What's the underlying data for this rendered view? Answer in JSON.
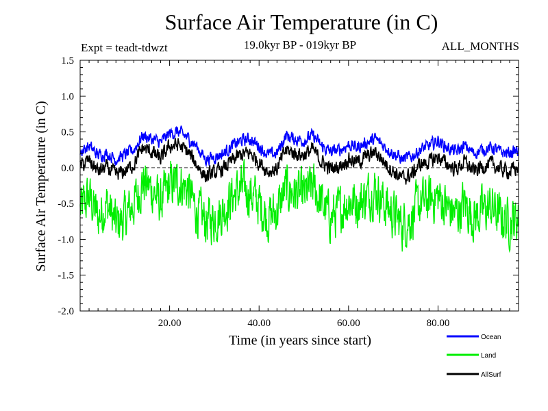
{
  "header": {
    "title": "Surface Air Temperature (in C)",
    "experiment": "Expt = teadt-tdwzt",
    "period": "19.0kyr BP - 019kyr BP",
    "months": "ALL_MONTHS"
  },
  "chart_data": {
    "type": "line",
    "title": "Surface Air Temperature (in C)",
    "xlabel": "Time (in years since start)",
    "ylabel": "Surface Air Temperature (in C)",
    "xlim": [
      0,
      98
    ],
    "ylim": [
      -2.0,
      1.5
    ],
    "x_ticks": [
      20,
      40,
      60,
      80
    ],
    "x_tick_labels": [
      "20.00",
      "40.00",
      "60.00",
      "80.00"
    ],
    "y_ticks": [
      -2.0,
      -1.5,
      -1.0,
      -0.5,
      0.0,
      0.5,
      1.0,
      1.5
    ],
    "y_tick_labels": [
      "-2.0",
      "-1.5",
      "-1.0",
      "-0.5",
      "0.0",
      "0.5",
      "1.0",
      "1.5"
    ],
    "reference_line": 0.0,
    "legend_position": "bottom-right",
    "series": [
      {
        "name": "Ocean",
        "color": "#0000ff",
        "x": [
          0,
          2,
          4,
          6,
          8,
          10,
          12,
          14,
          16,
          18,
          20,
          22,
          24,
          26,
          28,
          30,
          32,
          34,
          36,
          38,
          40,
          42,
          44,
          46,
          48,
          50,
          52,
          54,
          56,
          58,
          60,
          62,
          64,
          66,
          68,
          70,
          72,
          74,
          76,
          78,
          80,
          82,
          84,
          86,
          88,
          90,
          92,
          94,
          96,
          98
        ],
        "values": [
          0.22,
          0.3,
          0.18,
          0.2,
          0.12,
          0.18,
          0.25,
          0.45,
          0.4,
          0.35,
          0.48,
          0.5,
          0.42,
          0.3,
          0.12,
          0.15,
          0.2,
          0.3,
          0.38,
          0.4,
          0.3,
          0.18,
          0.2,
          0.45,
          0.4,
          0.38,
          0.45,
          0.3,
          0.22,
          0.25,
          0.32,
          0.28,
          0.35,
          0.4,
          0.3,
          0.2,
          0.12,
          0.15,
          0.25,
          0.3,
          0.38,
          0.28,
          0.22,
          0.3,
          0.2,
          0.25,
          0.28,
          0.22,
          0.2,
          0.25
        ]
      },
      {
        "name": "Land",
        "color": "#00ee00",
        "x": [
          0,
          2,
          4,
          6,
          8,
          10,
          12,
          14,
          16,
          18,
          20,
          22,
          24,
          26,
          28,
          30,
          32,
          34,
          36,
          38,
          40,
          42,
          44,
          46,
          48,
          50,
          52,
          54,
          56,
          58,
          60,
          62,
          64,
          66,
          68,
          70,
          72,
          74,
          76,
          78,
          80,
          82,
          84,
          86,
          88,
          90,
          92,
          94,
          96,
          98
        ],
        "values": [
          -0.6,
          -0.4,
          -0.7,
          -0.5,
          -0.8,
          -0.7,
          -0.5,
          -0.2,
          -0.3,
          -0.5,
          -0.25,
          -0.2,
          -0.3,
          -0.6,
          -0.75,
          -0.7,
          -0.6,
          -0.4,
          -0.3,
          -0.35,
          -0.5,
          -0.7,
          -0.6,
          -0.3,
          -0.35,
          -0.4,
          -0.25,
          -0.5,
          -0.7,
          -0.6,
          -0.45,
          -0.5,
          -0.4,
          -0.3,
          -0.5,
          -0.65,
          -0.8,
          -0.7,
          -0.5,
          -0.45,
          -0.4,
          -0.55,
          -0.65,
          -0.5,
          -0.7,
          -0.6,
          -0.55,
          -0.7,
          -0.75,
          -0.7
        ]
      },
      {
        "name": "AllSurf",
        "color": "#000000",
        "x": [
          0,
          2,
          4,
          6,
          8,
          10,
          12,
          14,
          16,
          18,
          20,
          22,
          24,
          26,
          28,
          30,
          32,
          34,
          36,
          38,
          40,
          42,
          44,
          46,
          48,
          50,
          52,
          54,
          56,
          58,
          60,
          62,
          64,
          66,
          68,
          70,
          72,
          74,
          76,
          78,
          80,
          82,
          84,
          86,
          88,
          90,
          92,
          94,
          96,
          98
        ],
        "values": [
          0.02,
          0.1,
          -0.05,
          0.0,
          -0.1,
          -0.05,
          0.05,
          0.28,
          0.22,
          0.12,
          0.3,
          0.32,
          0.22,
          0.05,
          -0.12,
          -0.08,
          -0.02,
          0.1,
          0.18,
          0.2,
          0.08,
          -0.05,
          -0.02,
          0.25,
          0.2,
          0.18,
          0.25,
          0.08,
          -0.02,
          0.02,
          0.12,
          0.08,
          0.15,
          0.22,
          0.08,
          -0.05,
          -0.15,
          -0.1,
          0.05,
          0.08,
          0.15,
          0.05,
          -0.02,
          0.08,
          -0.05,
          0.02,
          0.05,
          -0.02,
          -0.05,
          0.0
        ]
      }
    ]
  }
}
